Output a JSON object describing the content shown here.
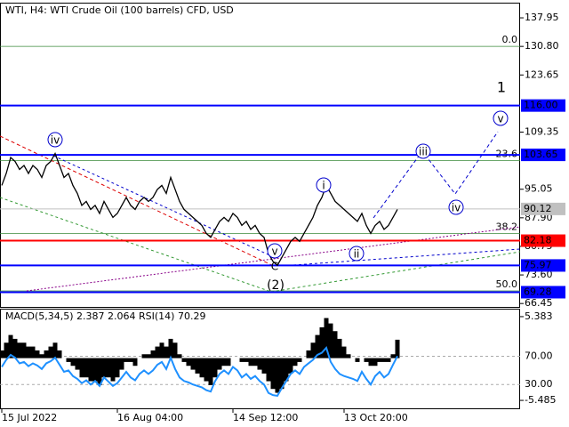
{
  "chart_data": [
    {
      "type": "line",
      "title": "WTI, H4:  WTI Crude Oil (100 barrels) CFD, USD",
      "categories": [
        "15 Jul 2022",
        null,
        null,
        null,
        null,
        null,
        null,
        null,
        null,
        null,
        null,
        null,
        null,
        null,
        null,
        null,
        null,
        null,
        null,
        null,
        null,
        null,
        null,
        null,
        null,
        null,
        "16 Aug 04:00",
        null,
        null,
        null,
        null,
        null,
        null,
        null,
        null,
        null,
        null,
        null,
        null,
        null,
        null,
        null,
        null,
        null,
        null,
        null,
        null,
        null,
        null,
        null,
        null,
        null,
        "14 Sep 12:00",
        null,
        null,
        null,
        null,
        null,
        null,
        null,
        null,
        null,
        null,
        null,
        null,
        null,
        null,
        null,
        null,
        null,
        null,
        null,
        null,
        null,
        null,
        null,
        null,
        "13 Oct 20:00",
        null,
        null,
        null,
        null,
        null,
        null,
        null,
        null,
        null,
        null,
        null,
        null
      ],
      "values": [
        96,
        99,
        103,
        102,
        100,
        101,
        99,
        101,
        100,
        98,
        101,
        102,
        104,
        101,
        98,
        99,
        96,
        94,
        91,
        92,
        90,
        91,
        89,
        92,
        90,
        88,
        89,
        91,
        93,
        91,
        90,
        92,
        93,
        92,
        93,
        95,
        96,
        94,
        98,
        95,
        92,
        90,
        89,
        88,
        87,
        86,
        84,
        83,
        85,
        87,
        88,
        87,
        89,
        88,
        86,
        87,
        85,
        86,
        84,
        83,
        79,
        77,
        76,
        78,
        80,
        82,
        83,
        82,
        84,
        86,
        88,
        91,
        93,
        96,
        94,
        92,
        91,
        90,
        89,
        88,
        87,
        89,
        86,
        84,
        86,
        87,
        85,
        86,
        88,
        90
      ],
      "color": "#000000",
      "ylim": [
        65.6,
        141.3
      ],
      "yticks": [
        137.95,
        {
          "value": 130.8,
          "label": "130.80"
        },
        123.65,
        109.35,
        95.05,
        {
          "value": 87.9,
          "label": "87.90"
        },
        80.75,
        {
          "value": 73.6,
          "label": "73.60"
        },
        66.45
      ],
      "levels": [
        {
          "value": 116,
          "label": "116.00",
          "color": "#0000ff"
        },
        {
          "value": 103.65,
          "label": "103.65",
          "color": "#0000ff"
        },
        {
          "value": 82.18,
          "label": "82.18",
          "color": "#ff0000"
        },
        {
          "value": 75.97,
          "label": "75.97",
          "color": "#0000ff"
        },
        {
          "value": 69.28,
          "label": "69.28",
          "color": "#0000ff"
        },
        {
          "value": 90.12,
          "label": "90.12",
          "color": "#c0c0c0"
        }
      ],
      "fib_levels": [
        {
          "value": 130.8,
          "label": "0.0"
        },
        {
          "value": 102.2,
          "label": "23.6"
        },
        {
          "value": 84.0,
          "label": "38.2"
        },
        {
          "value": 69.6,
          "label": "50.0"
        }
      ],
      "fib_color": "#3a8a3a",
      "annotations": [
        "iv",
        "i",
        "ii",
        "iii",
        "iv",
        "v",
        "v",
        "C",
        "(2)",
        "1"
      ]
    },
    {
      "type": "bar",
      "title": "MACD(5,34,5) 2.387 2.064 RSI(14) 70.29",
      "series": [
        {
          "values": [
            1,
            2,
            3,
            2.5,
            2,
            2,
            1.5,
            1.5,
            1,
            0.5,
            1,
            1.5,
            2,
            1,
            0,
            -0.5,
            -1,
            -1.5,
            -2.5,
            -2.5,
            -3,
            -3,
            -3.5,
            -2.5,
            -2.5,
            -3,
            -2.5,
            -1.5,
            -0.5,
            -0.5,
            -1,
            0,
            0.5,
            0.5,
            1,
            1.5,
            2,
            1.5,
            2.5,
            2,
            0.5,
            -0.5,
            -1,
            -1.5,
            -2,
            -2.5,
            -3,
            -3.5,
            -2.5,
            -1.5,
            -1,
            -1,
            0,
            0,
            -0.5,
            -0.5,
            -1,
            -1,
            -1.5,
            -2,
            -3,
            -4,
            -4.5,
            -4,
            -3,
            -2,
            -1,
            -0.5,
            0,
            1,
            2,
            3,
            4,
            5.2,
            4.5,
            3.5,
            2.5,
            1.5,
            0.5,
            0,
            -0.5,
            0,
            -0.5,
            -1,
            -1,
            -0.5,
            -0.5,
            -0.5,
            0.5,
            2.387
          ],
          "color": "#000000"
        },
        {
          "values": [
            55,
            65,
            72,
            68,
            60,
            62,
            56,
            60,
            57,
            52,
            60,
            63,
            68,
            58,
            48,
            50,
            42,
            38,
            32,
            36,
            30,
            35,
            28,
            40,
            34,
            28,
            32,
            40,
            48,
            40,
            36,
            45,
            50,
            45,
            50,
            58,
            62,
            52,
            68,
            52,
            40,
            35,
            33,
            30,
            28,
            26,
            22,
            20,
            35,
            45,
            50,
            45,
            55,
            50,
            40,
            45,
            38,
            42,
            35,
            30,
            18,
            15,
            14,
            25,
            35,
            45,
            50,
            45,
            55,
            60,
            65,
            72,
            75,
            82,
            62,
            52,
            45,
            42,
            40,
            38,
            35,
            48,
            38,
            30,
            42,
            48,
            40,
            45,
            58,
            70.29
          ],
          "color": "#1e90ff",
          "axis": "y2"
        }
      ],
      "ylim": [
        -6.63,
        6.3
      ],
      "yticks": [
        5.383,
        -5.485
      ],
      "y2lim": [
        -5,
        136.25
      ],
      "y2ticks": [
        {
          "value": 70,
          "label": "70.00"
        },
        {
          "value": 30,
          "label": "30.00"
        }
      ]
    }
  ]
}
